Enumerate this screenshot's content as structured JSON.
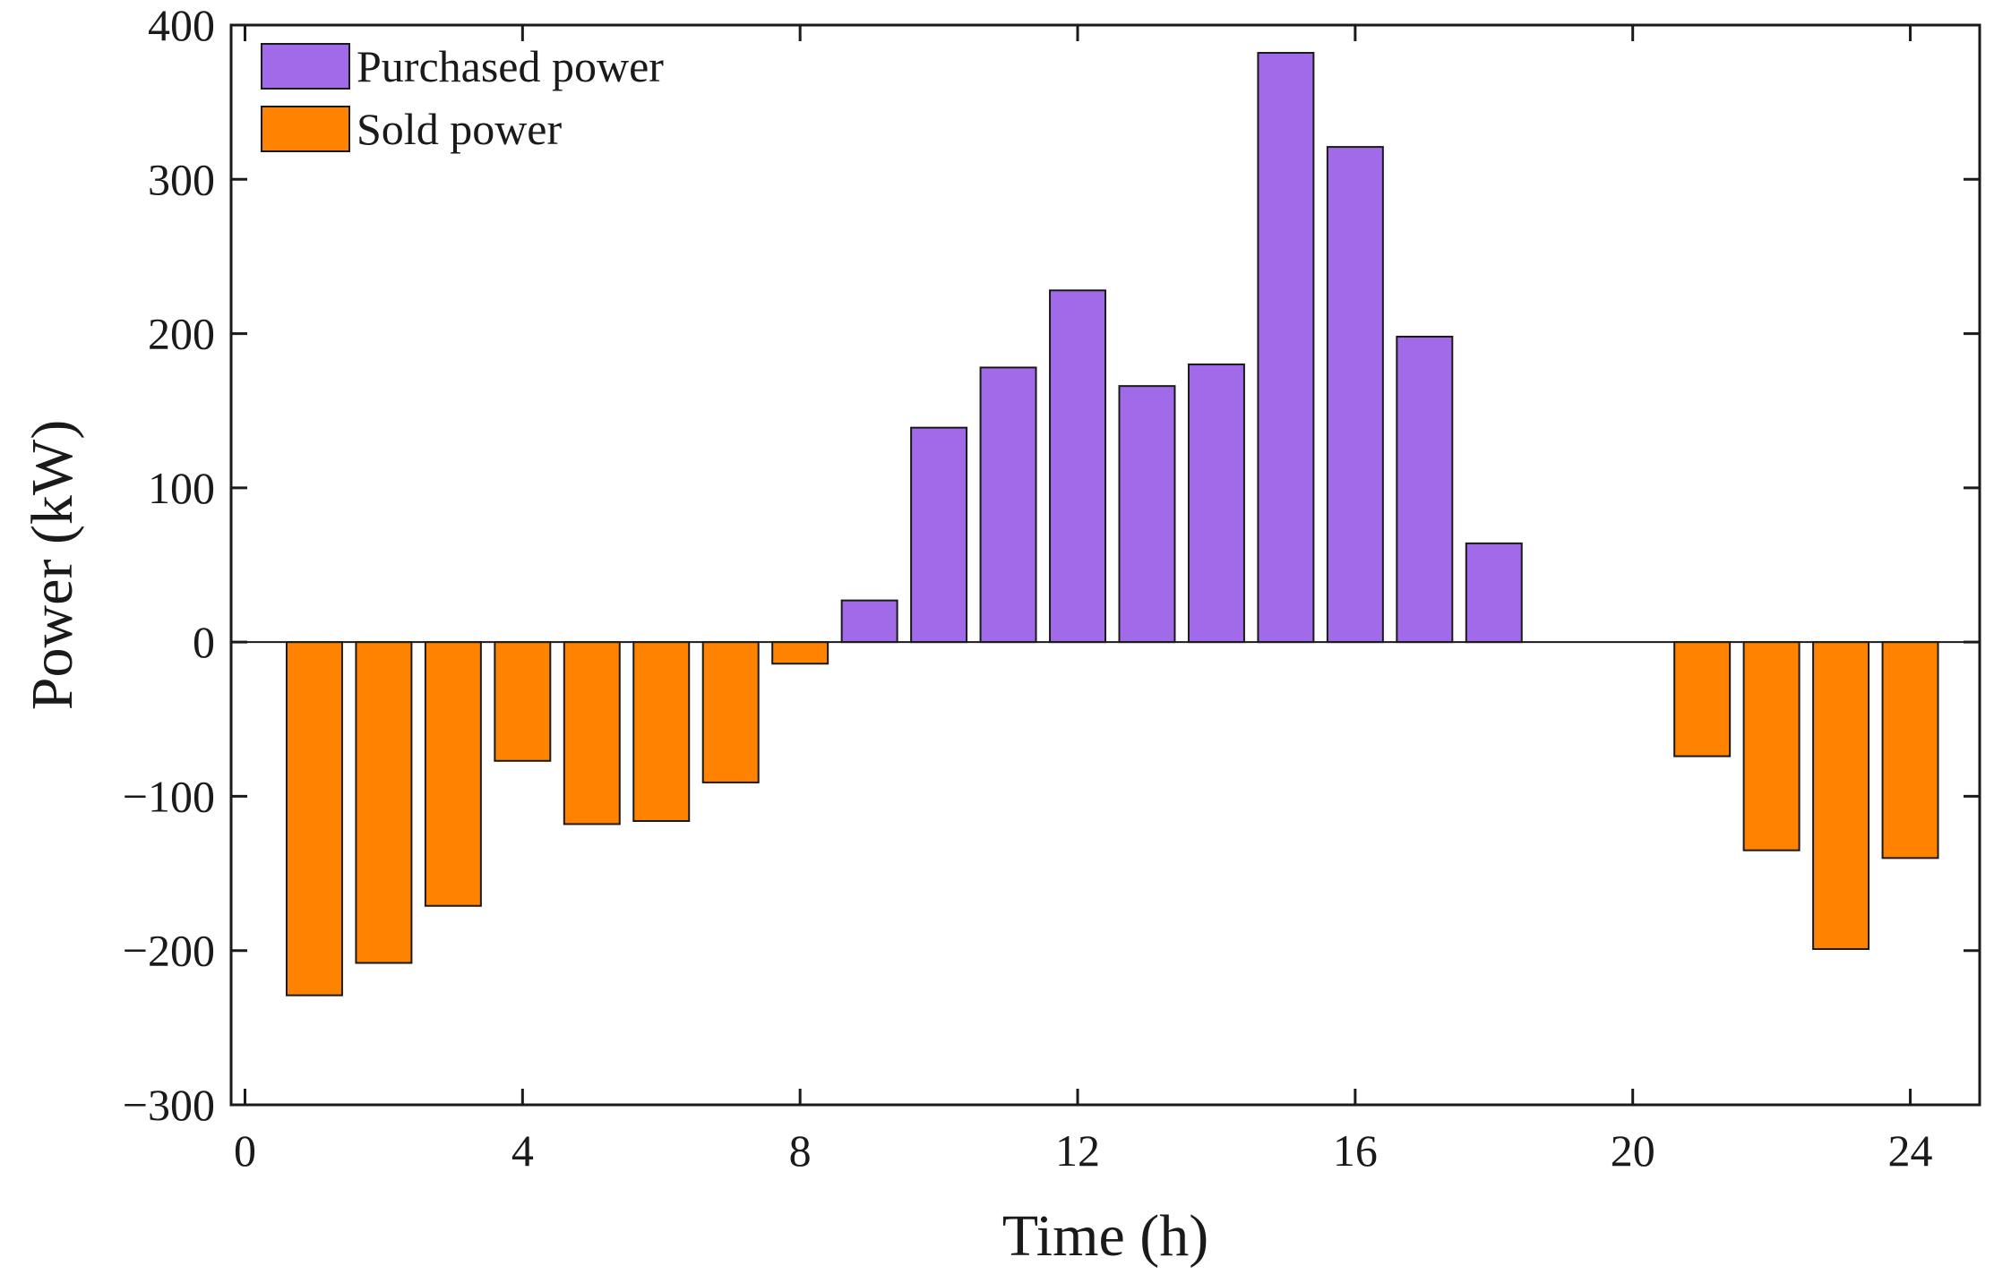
{
  "chart_data": {
    "type": "bar",
    "title": "",
    "xlabel": "Time (h)",
    "ylabel": "Power (kW)",
    "xlim": [
      -0.2,
      25
    ],
    "ylim": [
      -300,
      400
    ],
    "xticks": [
      0,
      4,
      8,
      12,
      16,
      20,
      24
    ],
    "yticks": [
      -300,
      -200,
      -100,
      0,
      100,
      200,
      300,
      400
    ],
    "ytick_labels": [
      "−300",
      "−200",
      "−100",
      "0",
      "100",
      "200",
      "300",
      "400"
    ],
    "x": [
      1,
      2,
      3,
      4,
      5,
      6,
      7,
      8,
      9,
      10,
      11,
      12,
      13,
      14,
      15,
      16,
      17,
      18,
      19,
      20,
      21,
      22,
      23,
      24
    ],
    "series": [
      {
        "name": "Purchased power",
        "color": "#a06ae8",
        "values": [
          0,
          0,
          0,
          0,
          0,
          0,
          0,
          0,
          27,
          139,
          178,
          228,
          166,
          180,
          382,
          321,
          198,
          64,
          0,
          0,
          0,
          0,
          0,
          0
        ]
      },
      {
        "name": "Sold power",
        "color": "#ff8200",
        "values": [
          -229,
          -208,
          -171,
          -77,
          -118,
          -116,
          -91,
          -14,
          0,
          0,
          0,
          0,
          0,
          0,
          0,
          0,
          0,
          0,
          0,
          0,
          -74,
          -135,
          -199,
          -140
        ]
      }
    ],
    "legend_position": "top-left",
    "grid": false
  }
}
